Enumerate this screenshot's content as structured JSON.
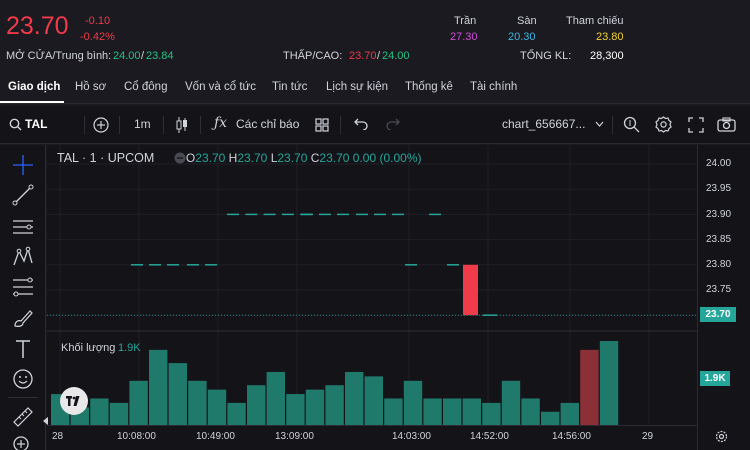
{
  "quote": {
    "price": "23.70",
    "change": "-0.10",
    "change_pct": "-0.42%",
    "open_avg_label": "MỞ CỬA/Trung bình:",
    "open": "24.00",
    "avg": "23.84",
    "low_high_label": "THẤP/CAO:",
    "low": "23.70",
    "high": "24.00",
    "ceiling_label": "Trần",
    "ceiling": "27.30",
    "floor_label": "Sàn",
    "floor": "20.30",
    "ref_label": "Tham chiếu",
    "ref": "23.80",
    "volume_label": "TỔNG KL:",
    "volume": "28,300",
    "slash": "/"
  },
  "tabs": [
    "Giao dịch",
    "Hồ sơ",
    "Cổ đông",
    "Vốn và cổ tức",
    "Tin tức",
    "Lịch sự kiện",
    "Thống kê",
    "Tài chính"
  ],
  "toolbar": {
    "symbol": "TAL",
    "interval": "1m",
    "indicators": "Các chỉ báo",
    "layout_name": "chart_656667..."
  },
  "legend": {
    "title": "TAL · 1 · UPCOM",
    "o_label": "O",
    "o": "23.70",
    "h_label": "H",
    "h": "23.70",
    "l_label": "L",
    "l": "23.70",
    "c_label": "C",
    "c": "23.70",
    "change": "0.00 (0.00%)",
    "volume_label": "Khối lượng",
    "volume": "1.9K"
  },
  "price_axis": {
    "ticks": [
      "24.00",
      "23.95",
      "23.90",
      "23.85",
      "23.80",
      "23.75"
    ],
    "last_price": "23.70",
    "last_volume": "1.9K"
  },
  "time_axis": {
    "ticks": [
      "28",
      "10:08:00",
      "10:49:00",
      "13:09:00",
      "14:03:00",
      "14:52:00",
      "14:56:00",
      "29"
    ]
  },
  "colors": {
    "up": "#26a69a",
    "down": "#ef3b4a",
    "ceiling": "#d04edb",
    "floor": "#3fb6e0",
    "ref": "#f2d22f",
    "background": "#131318"
  },
  "chart_data": {
    "type": "bar",
    "price": {
      "ticks": [
        24.0,
        23.95,
        23.9,
        23.85,
        23.8,
        23.75,
        23.7
      ],
      "flat_segments": [
        {
          "value": 23.9,
          "note": "flat 1-min bars"
        },
        {
          "value": 23.8,
          "note": "flat 1-min bars"
        }
      ],
      "last_candle": {
        "open": 23.8,
        "close": 23.7,
        "direction": "down"
      }
    },
    "volume": {
      "values": [
        0.7,
        0.4,
        0.6,
        0.5,
        1.0,
        1.7,
        1.4,
        1.0,
        0.8,
        0.5,
        0.9,
        1.2,
        0.7,
        0.8,
        0.9,
        1.2,
        1.1,
        0.6,
        1.0,
        0.6,
        0.6,
        0.6,
        0.5,
        1.0,
        0.6,
        0.3,
        0.5,
        1.7,
        1.9
      ],
      "colors": [
        "up",
        "up",
        "up",
        "up",
        "up",
        "up",
        "up",
        "up",
        "up",
        "up",
        "up",
        "up",
        "up",
        "up",
        "up",
        "up",
        "up",
        "up",
        "up",
        "up",
        "up",
        "up",
        "up",
        "up",
        "up",
        "up",
        "up",
        "down",
        "up"
      ]
    }
  }
}
